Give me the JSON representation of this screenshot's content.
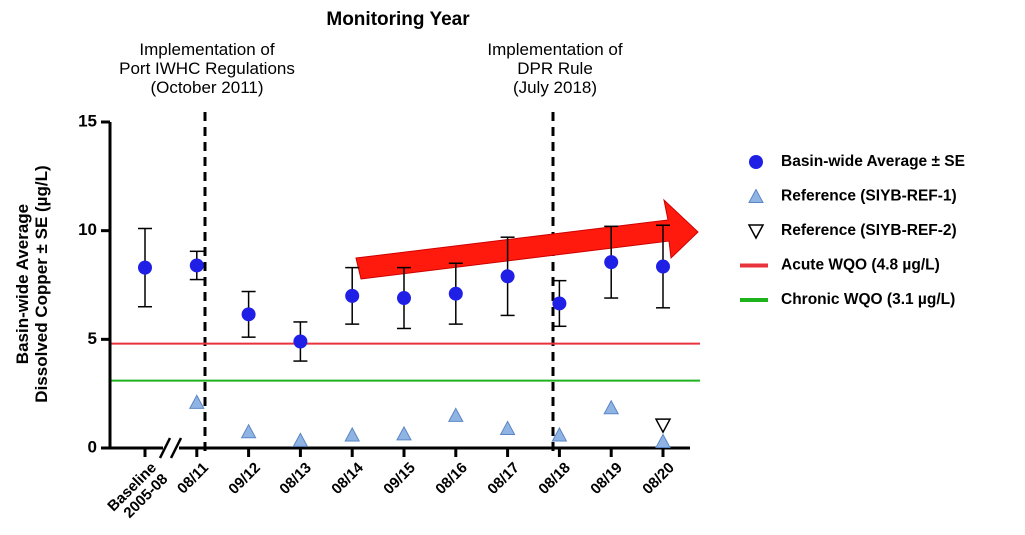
{
  "chart_data": {
    "type": "scatter",
    "title": "Monitoring Year",
    "y_label": "Basin-wide Average\nDissolved Copper ± SE (µg/L)",
    "annotations": [
      "Implementation of\nPort IWHC Regulations\n(October 2011)",
      "Implementation of\nDPR Rule\n(July 2018)"
    ],
    "categories": [
      "Baseline\n2005-08",
      "08/11",
      "09/12",
      "08/13",
      "08/14",
      "09/15",
      "08/16",
      "08/17",
      "08/18",
      "08/19",
      "08/20"
    ],
    "series": [
      {
        "name": "Basin-wide Average ± SE",
        "color": "#1f1fe6",
        "marker": "circle",
        "values": [
          8.3,
          8.4,
          6.15,
          4.9,
          7.0,
          6.9,
          7.1,
          7.9,
          6.65,
          8.55,
          8.35
        ],
        "errors": [
          1.8,
          0.65,
          1.05,
          0.9,
          1.3,
          1.4,
          1.4,
          1.8,
          1.05,
          1.65,
          1.9
        ]
      },
      {
        "name": "Reference (SIYB-REF-1)",
        "color": "#8fb4e3",
        "marker": "triangle",
        "values": [
          null,
          2.1,
          0.75,
          0.35,
          0.6,
          0.65,
          1.5,
          0.9,
          0.6,
          1.85,
          0.3
        ]
      },
      {
        "name": "Reference (SIYB-REF-2)",
        "color": "#000000",
        "marker": "triangle-down-open",
        "values": [
          null,
          null,
          null,
          null,
          null,
          null,
          null,
          null,
          null,
          null,
          1.05
        ]
      }
    ],
    "reference_lines": [
      {
        "name": "Acute WQO (4.8 µg/L)",
        "value": 4.8,
        "color": "#e8323c"
      },
      {
        "name": "Chronic WQO (3.1 µg/L)",
        "value": 3.1,
        "color": "#1db31d"
      }
    ],
    "ylim": [
      0,
      15
    ],
    "yticks": [
      0,
      5,
      10,
      15
    ]
  }
}
